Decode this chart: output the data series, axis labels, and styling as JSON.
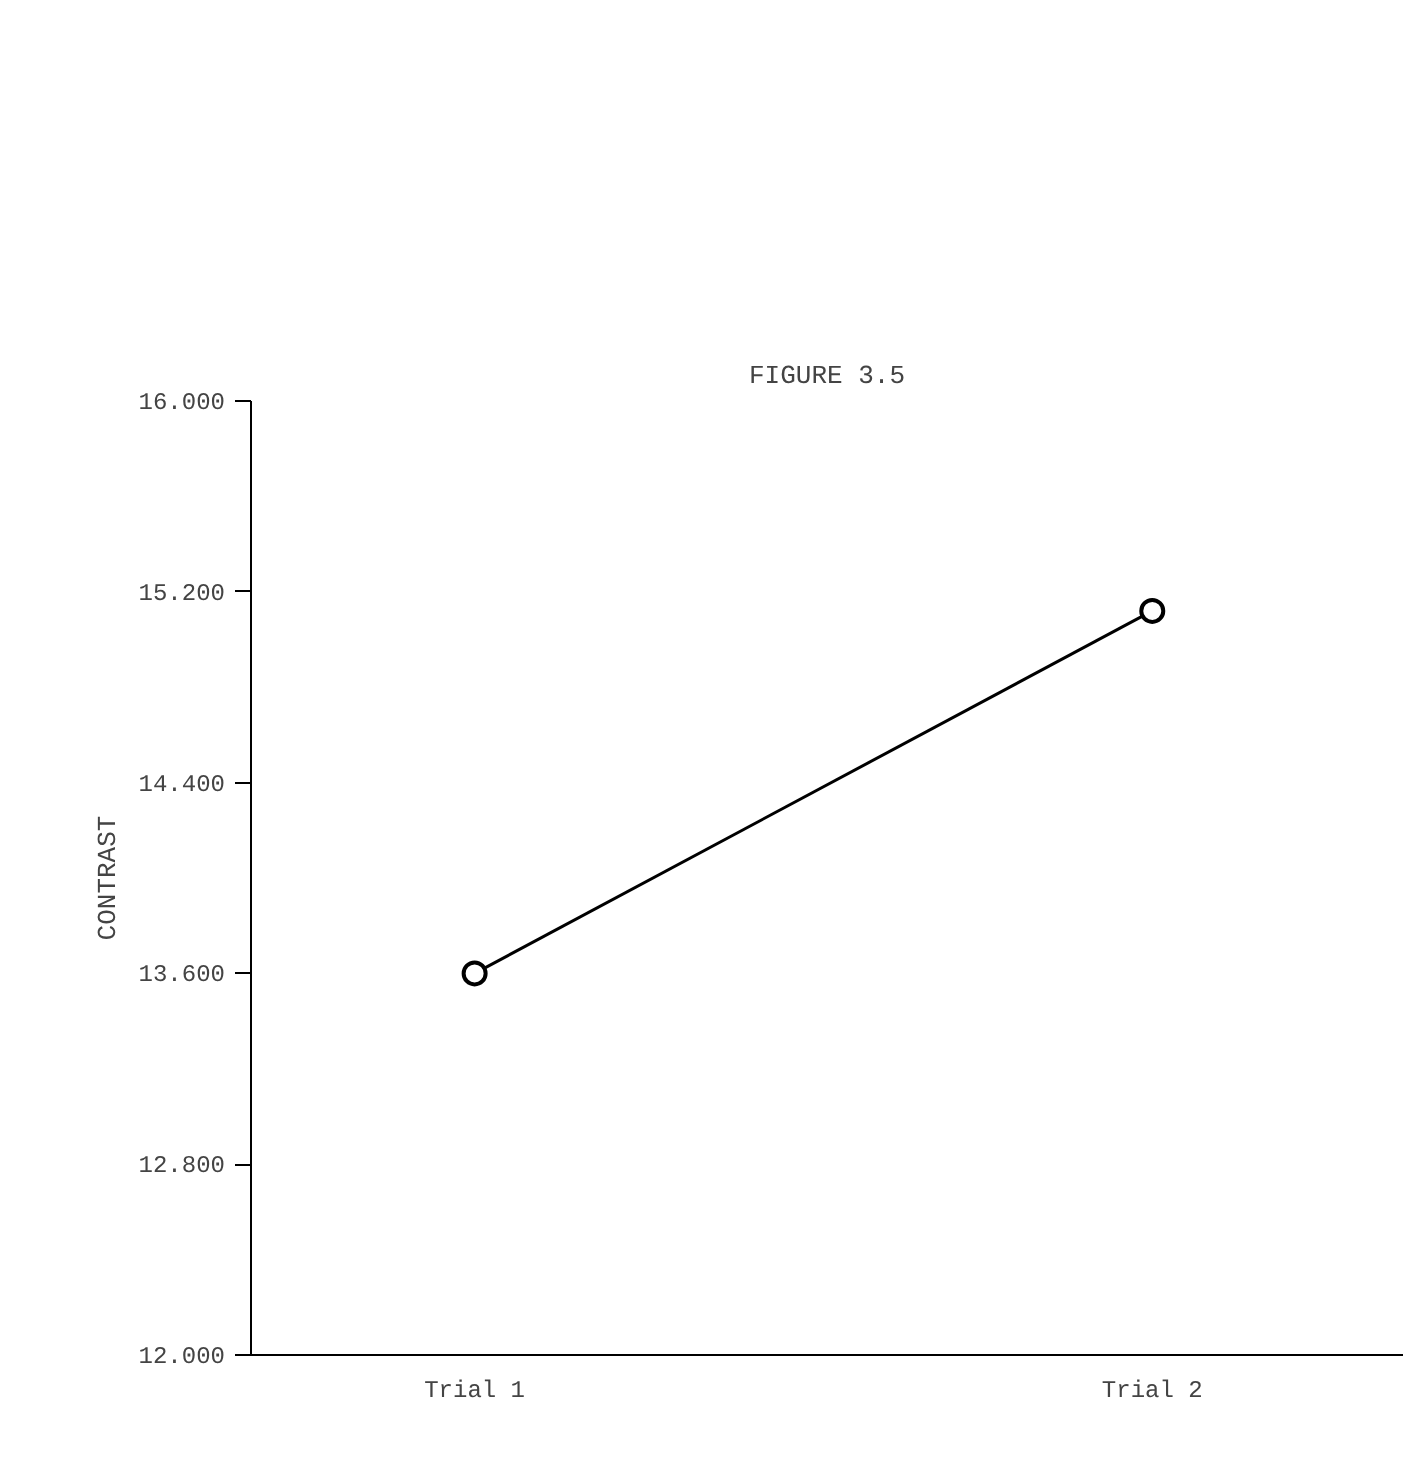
{
  "chart_data": {
    "type": "line",
    "title": "FIGURE 3.5",
    "ylabel": "CONTRAST",
    "categories": [
      "Trial 1",
      "Trial 2"
    ],
    "series": [
      {
        "color": "#000000",
        "values": [
          13.6,
          15.12
        ]
      }
    ],
    "ylim": [
      12.0,
      16.0
    ],
    "yticks": [
      {
        "value": 12.0,
        "label": "12.000"
      },
      {
        "value": 12.8,
        "label": "12.800"
      },
      {
        "value": 13.6,
        "label": "13.600"
      },
      {
        "value": 14.4,
        "label": "14.400"
      },
      {
        "value": 15.2,
        "label": "15.200"
      },
      {
        "value": 16.0,
        "label": "16.000"
      }
    ],
    "grid": false,
    "marker": "circle",
    "line_style": "solid"
  }
}
